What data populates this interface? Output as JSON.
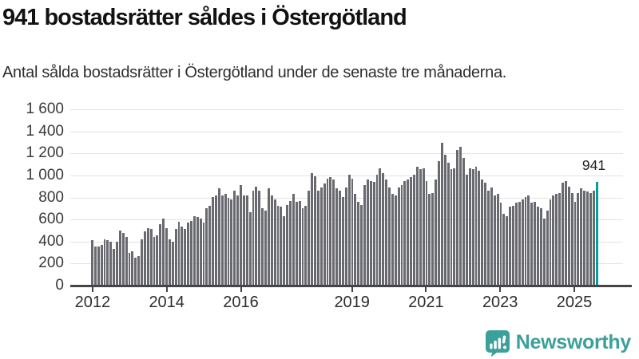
{
  "header": {
    "title": "941 bostadsrätter såldes i Östergötland",
    "subtitle": "Antal sålda bostadsrätter i Östergötland under de senaste tre månaderna."
  },
  "chart_data": {
    "type": "bar",
    "title": "941 bostadsrätter såldes i Östergötland",
    "xlabel": "",
    "ylabel": "Antal sålda bostadsrätter",
    "ylim": [
      0,
      1600
    ],
    "grid": "horizontal",
    "bar_color": "#696970",
    "highlight": {
      "label": "941",
      "value": 941,
      "period": "senaste tre månaderna",
      "color": "#00a0a0"
    },
    "yticks": [
      {
        "value": 0,
        "label": "0"
      },
      {
        "value": 200,
        "label": "200"
      },
      {
        "value": 400,
        "label": "400"
      },
      {
        "value": 600,
        "label": "600"
      },
      {
        "value": 800,
        "label": "800"
      },
      {
        "value": 1000,
        "label": "1 000"
      },
      {
        "value": 1200,
        "label": "1 200"
      },
      {
        "value": 1400,
        "label": "1 400"
      },
      {
        "value": 1600,
        "label": "1 600"
      }
    ],
    "xticks": [
      {
        "year": 2012,
        "label": "2012"
      },
      {
        "year": 2014,
        "label": "2014"
      },
      {
        "year": 2016,
        "label": "2016"
      },
      {
        "year": 2019,
        "label": "2019"
      },
      {
        "year": 2021,
        "label": "2021"
      },
      {
        "year": 2023,
        "label": "2023"
      },
      {
        "year": 2025,
        "label": "2025"
      }
    ],
    "series_note": "monthly rolling three-month totals, Jan 2012 - Aug 2025",
    "years": [
      {
        "year": 2012,
        "values": [
          410,
          355,
          355,
          370,
          420,
          410,
          395,
          335,
          400,
          500,
          480,
          440
        ]
      },
      {
        "year": 2013,
        "values": [
          300,
          315,
          255,
          270,
          420,
          495,
          525,
          515,
          440,
          455,
          560,
          605
        ]
      },
      {
        "year": 2014,
        "values": [
          525,
          420,
          395,
          515,
          580,
          535,
          515,
          570,
          585,
          630,
          620,
          605
        ]
      },
      {
        "year": 2015,
        "values": [
          570,
          700,
          725,
          805,
          820,
          880,
          820,
          830,
          795,
          785,
          865,
          820
        ]
      },
      {
        "year": 2016,
        "values": [
          915,
          820,
          820,
          665,
          865,
          900,
          865,
          700,
          680,
          880,
          820,
          785
        ]
      },
      {
        "year": 2017,
        "values": [
          725,
          715,
          630,
          735,
          770,
          830,
          760,
          770,
          700,
          725,
          865,
          1020
        ]
      },
      {
        "year": 2018,
        "values": [
          995,
          865,
          890,
          925,
          970,
          985,
          960,
          880,
          865,
          805,
          890,
          1005
        ]
      },
      {
        "year": 2019,
        "values": [
          970,
          830,
          760,
          735,
          915,
          960,
          950,
          945,
          1005,
          1065,
          1020,
          960
        ]
      },
      {
        "year": 2020,
        "values": [
          890,
          830,
          820,
          890,
          915,
          950,
          960,
          985,
          1005,
          1080,
          1055,
          1065
        ]
      },
      {
        "year": 2021,
        "values": [
          950,
          830,
          840,
          960,
          1130,
          1295,
          1190,
          1115,
          1055,
          1065,
          1230,
          1260
        ]
      },
      {
        "year": 2022,
        "values": [
          1160,
          1010,
          1065,
          1055,
          1080,
          1040,
          960,
          935,
          865,
          890,
          820,
          830
        ]
      },
      {
        "year": 2023,
        "values": [
          750,
          655,
          630,
          715,
          725,
          750,
          760,
          785,
          805,
          820,
          750,
          760
        ]
      },
      {
        "year": 2024,
        "values": [
          715,
          700,
          605,
          680,
          785,
          820,
          830,
          840,
          935,
          950,
          900,
          840
        ]
      },
      {
        "year": 2025,
        "values": [
          760,
          840,
          880,
          865,
          855,
          840,
          865,
          941
        ]
      }
    ]
  },
  "branding": {
    "logo_text": "Newsworthy",
    "color": "#3ba099"
  }
}
